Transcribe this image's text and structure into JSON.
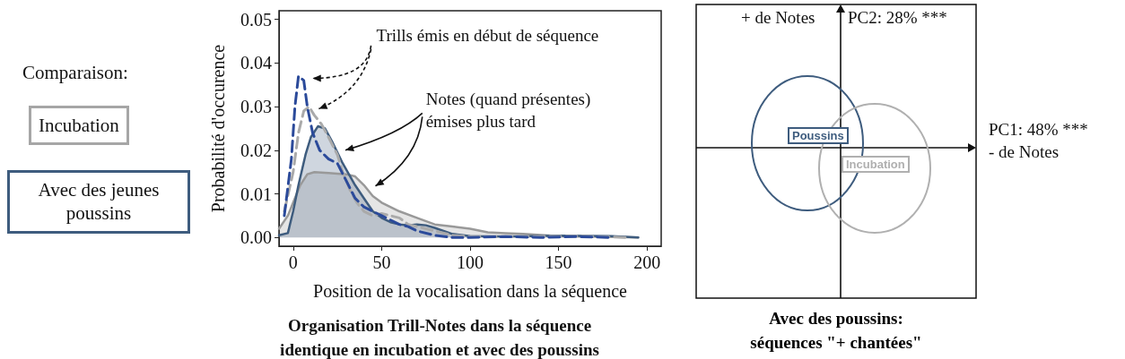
{
  "chart_data": [
    {
      "type": "other",
      "title": "Comparaison:",
      "annotations": [
        "Incubation",
        "Avec des jeunes poussins"
      ],
      "colors": [
        "#a6a6a6",
        "#3e5c7e"
      ]
    },
    {
      "type": "line",
      "title": "Organisation Trill-Notes dans la séquence\nidentique en incubation et avec des poussins",
      "xlabel": "Position de la vocalisation dans la séquence",
      "ylabel": "Probabilité d'occurence",
      "xlim": [
        -8,
        208
      ],
      "xticks": [
        0,
        50,
        100,
        150,
        200
      ],
      "ylim": [
        -0.002,
        0.052
      ],
      "yticks": [
        {
          "value": 0,
          "label": "0.00"
        },
        {
          "value": 0.01,
          "label": "0.01"
        },
        {
          "value": 0.02,
          "label": "0.02"
        },
        {
          "value": 0.03,
          "label": "0.03"
        },
        {
          "value": 0.04,
          "label": "0.04"
        },
        {
          "value": 0.05,
          "label": "0.05"
        }
      ],
      "annotations": [
        "Trills émis en début de séquence",
        "Notes (quand présentes)\némises plus tard"
      ],
      "series": [
        {
          "type": "area",
          "color": "#999999",
          "line_style": "solid",
          "x": [
            -8,
            -3,
            0,
            4,
            8,
            12,
            20,
            30,
            35,
            40,
            45,
            50,
            60,
            70,
            80,
            90,
            100,
            110,
            120,
            130,
            150,
            170,
            195
          ],
          "values": [
            0.002,
            0.005,
            0.008,
            0.012,
            0.0145,
            0.015,
            0.0148,
            0.0145,
            0.014,
            0.012,
            0.0095,
            0.008,
            0.006,
            0.0045,
            0.003,
            0.0025,
            0.002,
            0.0012,
            0.001,
            0.0008,
            0.0003,
            0.0002,
            0
          ]
        },
        {
          "type": "area",
          "color": "#3e5c7e",
          "line_style": "solid",
          "x": [
            -8,
            -3,
            0,
            3,
            7,
            10,
            14,
            18,
            22,
            28,
            35,
            40,
            45,
            50,
            55,
            60,
            65,
            70,
            75,
            80,
            85,
            90,
            100,
            120,
            150,
            180,
            195
          ],
          "values": [
            0.0005,
            0.001,
            0.006,
            0.012,
            0.019,
            0.023,
            0.0255,
            0.025,
            0.022,
            0.017,
            0.012,
            0.009,
            0.006,
            0.0045,
            0.0035,
            0.003,
            0.0028,
            0.003,
            0.0028,
            0.0022,
            0.0015,
            0.0008,
            0.0003,
            0.0002,
            0.0004,
            0.0003,
            0
          ]
        },
        {
          "type": "line",
          "color": "#aaaaaa",
          "line_style": "dashed",
          "x": [
            -5,
            0,
            3,
            6,
            9,
            12,
            16,
            20,
            25,
            28,
            32,
            36,
            40,
            45,
            50,
            55,
            60,
            65,
            70,
            80,
            90,
            100,
            130,
            160,
            190
          ],
          "values": [
            0.006,
            0.015,
            0.024,
            0.029,
            0.03,
            0.028,
            0.026,
            0.023,
            0.019,
            0.015,
            0.011,
            0.008,
            0.006,
            0.005,
            0.0055,
            0.005,
            0.0045,
            0.003,
            0.0025,
            0.0015,
            0.0005,
            0.0002,
            0.0002,
            0.0003,
            0
          ]
        },
        {
          "type": "line",
          "color": "#2b4a9a",
          "line_style": "dashed",
          "x": [
            -5,
            -1,
            1,
            3,
            6,
            8,
            11,
            15,
            20,
            25,
            30,
            35,
            40,
            45,
            50,
            55,
            60,
            65,
            70,
            80,
            90,
            100,
            120,
            140,
            160,
            180
          ],
          "values": [
            0.005,
            0.018,
            0.03,
            0.037,
            0.036,
            0.03,
            0.024,
            0.02,
            0.018,
            0.017,
            0.013,
            0.009,
            0.007,
            0.006,
            0.005,
            0.004,
            0.003,
            0.0025,
            0.0015,
            0.0005,
            0,
            0,
            0.0002,
            0,
            0.0002,
            0
          ]
        }
      ]
    },
    {
      "type": "other",
      "title": "Avec des poussins:\nséquences \"+ chantées\"",
      "annotations": [
        "+ de Notes",
        "PC2: 28% ***",
        "PC1: 48% ***\n- de Notes",
        "Poussins",
        "Incubation"
      ],
      "colors": [
        "#3e5c7e",
        "#b0b0b0"
      ]
    }
  ]
}
